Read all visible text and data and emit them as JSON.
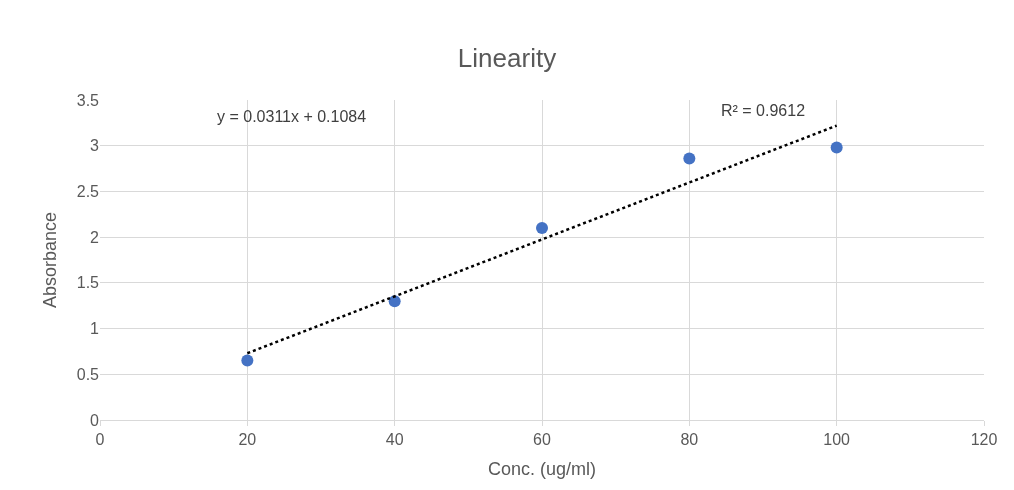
{
  "chart_data": {
    "type": "scatter",
    "title": "Linearity",
    "xlabel": "Conc. (ug/ml)",
    "ylabel": "Absorbance",
    "x": [
      20,
      40,
      60,
      80,
      100
    ],
    "series": [
      {
        "color": "#4472c4",
        "values": [
          0.65,
          1.3,
          2.1,
          2.86,
          2.98
        ],
        "marker": "circle"
      },
      {
        "type": "line",
        "color": "#000000",
        "x": [
          20,
          100
        ],
        "values": [
          0.73,
          3.22
        ],
        "line_style": "dotted",
        "marker": "none"
      }
    ],
    "annotations": [
      "y = 0.0311x + 0.1084",
      "R² = 0.9612"
    ],
    "xlim": [
      0,
      120
    ],
    "xticks": [
      0,
      20,
      40,
      60,
      80,
      100,
      120
    ],
    "ylim": [
      0,
      3.5
    ],
    "yticks": [
      0,
      0.5,
      1,
      1.5,
      2,
      2.5,
      3,
      3.5
    ],
    "grid": true
  }
}
